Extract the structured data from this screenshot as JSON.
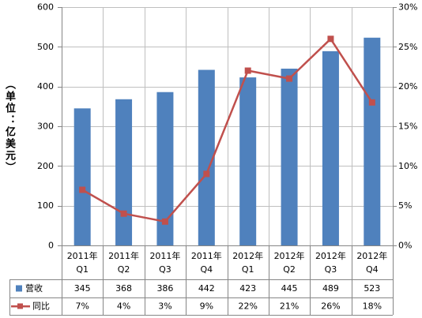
{
  "chart_data": {
    "type": "bar",
    "categories": [
      "2011年Q1",
      "2011年Q2",
      "2011年Q3",
      "2011年Q4",
      "2012年Q1",
      "2012年Q2",
      "2012年Q3",
      "2012年Q4"
    ],
    "series": [
      {
        "name": "营收",
        "type": "bar",
        "axis": "left",
        "color": "#4F81BD",
        "values": [
          345,
          368,
          386,
          442,
          423,
          445,
          489,
          523
        ]
      },
      {
        "name": "同比",
        "type": "line",
        "axis": "right",
        "color": "#C0504D",
        "marker": "square",
        "value_suffix": "%",
        "values": [
          7,
          4,
          3,
          9,
          22,
          21,
          26,
          18
        ]
      }
    ],
    "title": "",
    "xlabel": "",
    "ylabel": "（单位：亿美元）",
    "ylim": [
      0,
      600
    ],
    "yticks": [
      0,
      100,
      200,
      300,
      400,
      500,
      600
    ],
    "y2lim": [
      0,
      30
    ],
    "y2ticks": [
      "0%",
      "5%",
      "10%",
      "15%",
      "20%",
      "25%",
      "30%"
    ],
    "grid": true,
    "legend": "data-table-below"
  }
}
